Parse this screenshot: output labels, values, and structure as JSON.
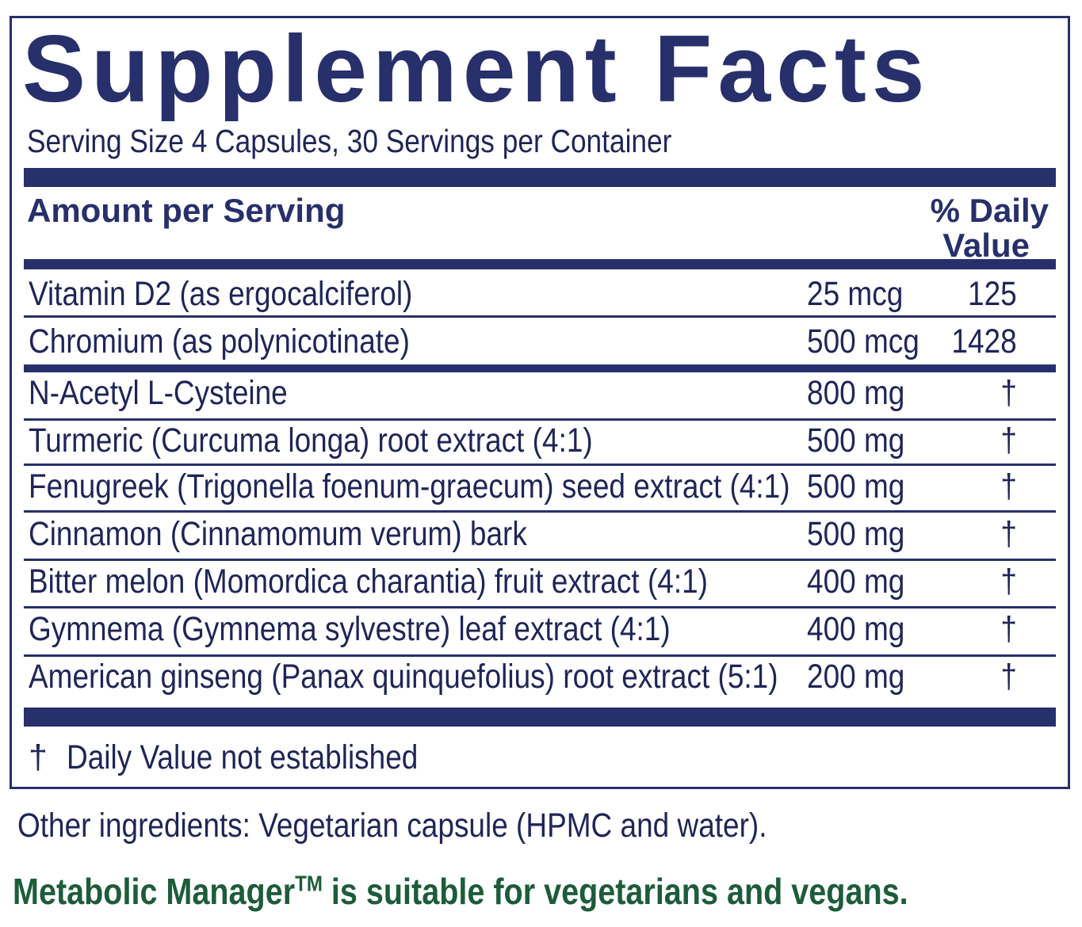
{
  "label": {
    "title": "Supplement Facts",
    "serving": "Serving Size 4 Capsules, 30 Servings per Container",
    "header_amount": "Amount per Serving",
    "header_dv_line1": "% Daily",
    "header_dv_line2": "Value",
    "rows": [
      {
        "name": "Vitamin D2 (as ergocalciferol)",
        "amount": "25 mcg",
        "dv": "125"
      },
      {
        "name": "Chromium (as polynicotinate)",
        "amount": "500 mcg",
        "dv": "1428"
      },
      {
        "name": "N-Acetyl L-Cysteine",
        "amount": "800 mg",
        "dv": "†"
      },
      {
        "name": "Turmeric (Curcuma longa) root extract (4:1)",
        "amount": "500 mg",
        "dv": "†"
      },
      {
        "name": "Fenugreek (Trigonella foenum-graecum) seed extract (4:1)",
        "amount": "500 mg",
        "dv": "†"
      },
      {
        "name": "Cinnamon (Cinnamomum verum) bark",
        "amount": "500 mg",
        "dv": "†"
      },
      {
        "name": "Bitter melon (Momordica charantia) fruit extract (4:1)",
        "amount": "400 mg",
        "dv": "†"
      },
      {
        "name": "Gymnema (Gymnema sylvestre) leaf extract (4:1)",
        "amount": "400 mg",
        "dv": "†"
      },
      {
        "name": "American ginseng (Panax quinquefolius) root extract (5:1)",
        "amount": "200 mg",
        "dv": "†"
      }
    ],
    "footnote_symbol": "†",
    "footnote": "Daily Value not established"
  },
  "other_ingredients": "Other ingredients: Vegetarian capsule (HPMC and water).",
  "vegan_note": {
    "product": "Metabolic Manager",
    "trademark": "TM",
    "text": " is suitable for vegetarians and vegans."
  }
}
